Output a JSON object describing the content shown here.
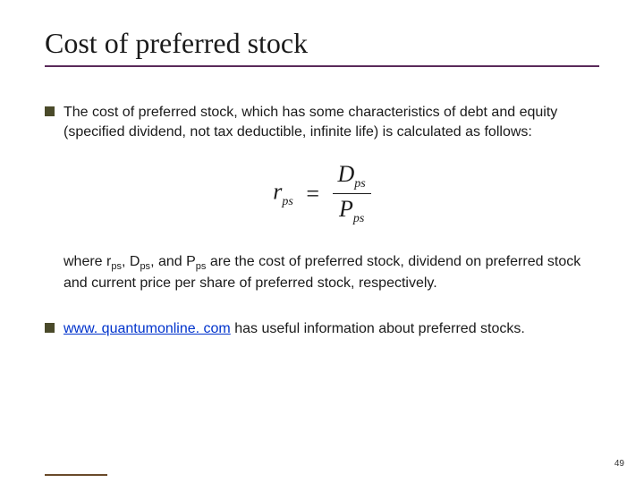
{
  "title": "Cost of preferred stock",
  "bullet1": "The cost of preferred stock, which has some characteristics of debt and equity (specified dividend, not tax deductible, infinite life) is calculated as follows:",
  "formula": {
    "lhs_var": "r",
    "lhs_sub": "ps",
    "eq": "=",
    "num_var": "D",
    "num_sub": "ps",
    "den_var": "P",
    "den_sub": "ps"
  },
  "where_prefix": "where r",
  "where_sub1": "ps",
  "where_mid1": ", D",
  "where_sub2": "ps",
  "where_mid2": ", and P",
  "where_sub3": "ps",
  "where_suffix": " are the cost of preferred stock, dividend on preferred stock and current price per share of preferred stock, respectively.",
  "bullet2_link": "www. quantumonline. com",
  "bullet2_rest": " has useful information about preferred stocks.",
  "page_number": "49",
  "colors": {
    "title_underline": "#5a2a5a",
    "bullet_square": "#4a4a2a",
    "link": "#0033cc",
    "text": "#1a1a1a",
    "background": "#ffffff"
  },
  "fonts": {
    "title_family": "Times New Roman",
    "title_size_pt": 24,
    "body_family": "Arial",
    "body_size_pt": 12,
    "formula_family": "Times New Roman",
    "formula_size_pt": 20
  }
}
